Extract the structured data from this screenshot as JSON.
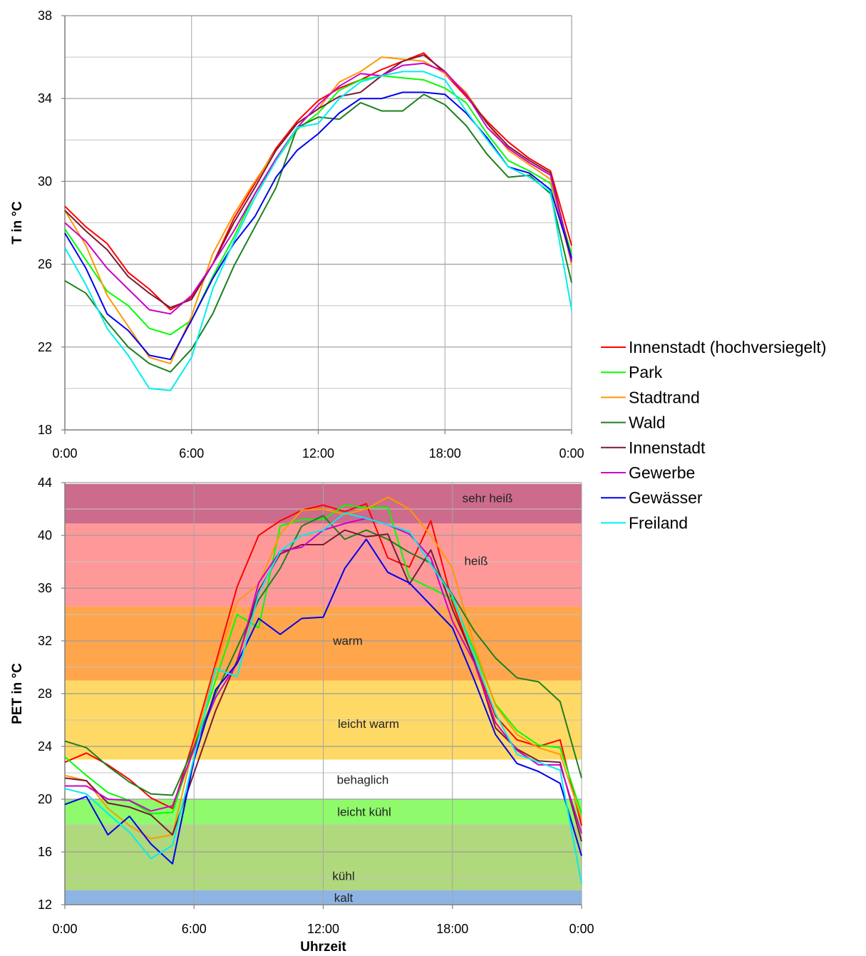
{
  "chart_data": [
    {
      "type": "line",
      "title": "",
      "xlabel": "",
      "ylabel": "T in °C",
      "xlim": [
        0,
        24
      ],
      "ylim": [
        18,
        38
      ],
      "x_ticks": [
        0,
        6,
        12,
        18,
        24
      ],
      "x_tick_labels": [
        "0:00",
        "6:00",
        "12:00",
        "18:00",
        "0:00"
      ],
      "y_ticks": [
        18,
        22,
        26,
        30,
        34,
        38
      ],
      "y_tick_labels": [
        "18",
        "22",
        "26",
        "30",
        "34",
        "38"
      ],
      "grid": true,
      "x": [
        0,
        1,
        2,
        3,
        4,
        5,
        6,
        7,
        8,
        9,
        10,
        11,
        12,
        13,
        14,
        15,
        16,
        17,
        18,
        19,
        20,
        21,
        22,
        23,
        24
      ],
      "series": [
        {
          "name": "Innenstadt (hochversiegelt)",
          "color": "#ff0000",
          "values": [
            28.8,
            27.8,
            27.0,
            25.6,
            24.8,
            23.8,
            24.4,
            26.0,
            28.2,
            29.9,
            31.6,
            32.9,
            33.9,
            34.5,
            34.9,
            35.4,
            35.8,
            36.2,
            35.2,
            34.1,
            32.9,
            31.9,
            31.1,
            30.5,
            26.9
          ]
        },
        {
          "name": "Park",
          "color": "#00ff00",
          "values": [
            27.7,
            26.2,
            24.7,
            24.0,
            22.9,
            22.6,
            23.3,
            25.4,
            27.3,
            29.4,
            31.0,
            32.5,
            33.3,
            34.4,
            34.9,
            35.1,
            35.0,
            34.9,
            34.5,
            33.8,
            32.3,
            31.0,
            30.5,
            29.9,
            26.5
          ]
        },
        {
          "name": "Stadtrand",
          "color": "#ff9900",
          "values": [
            28.6,
            26.9,
            24.5,
            23.0,
            21.5,
            21.2,
            23.5,
            26.5,
            28.4,
            30.0,
            31.5,
            32.8,
            33.5,
            34.8,
            35.3,
            36.0,
            35.9,
            35.8,
            35.2,
            34.3,
            32.8,
            31.5,
            30.8,
            30.1,
            26.0
          ]
        },
        {
          "name": "Wald",
          "color": "#1e7f1e",
          "values": [
            25.2,
            24.6,
            23.2,
            22.0,
            21.2,
            20.8,
            21.9,
            23.6,
            25.9,
            27.8,
            29.7,
            32.6,
            33.1,
            33.0,
            33.8,
            33.4,
            33.4,
            34.2,
            33.7,
            32.7,
            31.3,
            30.2,
            30.3,
            29.4,
            25.1
          ]
        },
        {
          "name": "Innenstadt",
          "color": "#7a1a33",
          "values": [
            28.6,
            27.6,
            26.7,
            25.4,
            24.6,
            23.9,
            24.3,
            26.0,
            28.0,
            29.7,
            31.5,
            32.8,
            33.5,
            34.1,
            34.3,
            35.1,
            35.8,
            36.1,
            35.3,
            34.2,
            32.8,
            31.7,
            31.0,
            30.4,
            26.2
          ]
        },
        {
          "name": "Gewerbe",
          "color": "#cc00cc",
          "values": [
            28.0,
            27.1,
            25.8,
            24.8,
            23.8,
            23.6,
            24.5,
            26.0,
            27.6,
            29.4,
            31.1,
            32.6,
            33.7,
            34.6,
            35.2,
            35.1,
            35.6,
            35.7,
            35.3,
            34.2,
            32.6,
            31.6,
            30.9,
            30.3,
            26.1
          ]
        },
        {
          "name": "Gewässer",
          "color": "#0000ee",
          "values": [
            27.5,
            25.8,
            23.6,
            22.8,
            21.6,
            21.4,
            23.3,
            25.3,
            27.0,
            28.3,
            30.2,
            31.5,
            32.3,
            33.3,
            34.0,
            34.0,
            34.3,
            34.3,
            34.2,
            33.3,
            32.1,
            30.7,
            30.4,
            29.6,
            26.3
          ]
        },
        {
          "name": "Freiland",
          "color": "#00eeee",
          "values": [
            26.8,
            25.0,
            22.9,
            21.6,
            20.0,
            19.9,
            21.5,
            24.8,
            27.1,
            29.2,
            31.0,
            32.6,
            32.8,
            34.0,
            34.8,
            35.1,
            35.3,
            35.3,
            34.9,
            33.4,
            32.0,
            30.7,
            30.2,
            29.5,
            23.8
          ]
        }
      ]
    },
    {
      "type": "line",
      "title": "",
      "xlabel": "Uhrzeit",
      "ylabel": "PET in °C",
      "xlim": [
        0,
        24
      ],
      "ylim": [
        12,
        44
      ],
      "x_ticks": [
        0,
        6,
        12,
        18,
        24
      ],
      "x_tick_labels": [
        "0:00",
        "6:00",
        "12:00",
        "18:00",
        "0:00"
      ],
      "y_ticks": [
        12,
        16,
        20,
        24,
        28,
        32,
        36,
        40,
        44
      ],
      "y_tick_labels": [
        "12",
        "16",
        "20",
        "24",
        "28",
        "32",
        "36",
        "40",
        "44"
      ],
      "grid": true,
      "bands": [
        {
          "label": "kalt",
          "from": 12,
          "to": 13.1,
          "color": "#8eb4e3"
        },
        {
          "label": "kühl",
          "from": 13.1,
          "to": 18.1,
          "color": "#b0d87c"
        },
        {
          "label": "leicht kühl",
          "from": 18.1,
          "to": 20.0,
          "color": "#8efa6c"
        },
        {
          "label": "behaglich",
          "from": 20.0,
          "to": 23.0,
          "color": "#ffffff"
        },
        {
          "label": "leicht warm",
          "from": 23.0,
          "to": 29.0,
          "color": "#ffd966"
        },
        {
          "label": "warm",
          "from": 29.0,
          "to": 34.6,
          "color": "#ffa64d"
        },
        {
          "label": "heiß",
          "from": 34.6,
          "to": 40.9,
          "color": "#ff9999"
        },
        {
          "label": "sehr heiß",
          "from": 40.9,
          "to": 43.9,
          "color": "#cc6b8c"
        }
      ],
      "x": [
        0,
        1,
        2,
        3,
        4,
        5,
        6,
        7,
        8,
        9,
        10,
        11,
        12,
        13,
        14,
        15,
        16,
        17,
        18,
        19,
        20,
        21,
        22,
        23,
        24
      ],
      "series": [
        {
          "name": "Innenstadt (hochversiegelt)",
          "color": "#ff0000",
          "values": [
            22.8,
            23.5,
            22.6,
            21.5,
            20.1,
            19.3,
            24.6,
            30.3,
            36.1,
            40.0,
            41.1,
            41.9,
            42.3,
            41.8,
            42.4,
            38.3,
            37.6,
            41.1,
            34.9,
            30.5,
            26.3,
            24.5,
            24.0,
            24.5,
            18.0
          ]
        },
        {
          "name": "Park",
          "color": "#00ff00",
          "values": [
            23.2,
            21.8,
            20.5,
            19.9,
            18.9,
            19.0,
            24.0,
            29.0,
            34.0,
            33.0,
            40.7,
            41.2,
            41.2,
            42.3,
            42.1,
            42.1,
            36.8,
            36.0,
            35.2,
            31.3,
            27.2,
            25.2,
            24.1,
            23.9,
            18.9
          ]
        },
        {
          "name": "Stadtrand",
          "color": "#ff9900",
          "values": [
            21.8,
            21.4,
            19.3,
            18.0,
            17.0,
            17.3,
            24.2,
            30.0,
            35.0,
            36.3,
            40.1,
            41.9,
            42.0,
            41.6,
            42.0,
            42.9,
            42.0,
            40.0,
            37.5,
            31.7,
            27.1,
            24.9,
            23.9,
            23.4,
            18.5
          ]
        },
        {
          "name": "Wald",
          "color": "#1e7f1e",
          "values": [
            24.4,
            23.9,
            22.5,
            21.3,
            20.4,
            20.3,
            24.0,
            28.0,
            31.5,
            35.1,
            37.5,
            40.7,
            41.5,
            39.7,
            40.4,
            39.7,
            38.7,
            37.9,
            35.5,
            32.8,
            30.7,
            29.2,
            28.9,
            27.4,
            21.6
          ]
        },
        {
          "name": "Innenstadt",
          "color": "#7a1a33",
          "values": [
            21.6,
            21.4,
            19.7,
            19.4,
            18.8,
            17.3,
            22.0,
            26.7,
            30.5,
            35.8,
            38.6,
            39.3,
            39.3,
            40.4,
            39.9,
            40.1,
            36.3,
            38.9,
            34.4,
            30.6,
            25.4,
            23.8,
            22.9,
            22.8,
            16.8
          ]
        },
        {
          "name": "Gewerbe",
          "color": "#cc00cc",
          "values": [
            21.0,
            21.0,
            20.0,
            19.9,
            19.1,
            19.5,
            23.8,
            27.7,
            30.3,
            36.4,
            38.8,
            39.1,
            40.4,
            40.9,
            41.3,
            40.8,
            40.1,
            38.3,
            33.5,
            30.4,
            25.8,
            23.7,
            22.6,
            22.6,
            17.4
          ]
        },
        {
          "name": "Gewässer",
          "color": "#0000ee",
          "values": [
            19.6,
            20.2,
            17.3,
            18.7,
            16.6,
            15.1,
            23.0,
            28.3,
            30.3,
            33.7,
            32.5,
            33.7,
            33.8,
            37.5,
            39.7,
            37.2,
            36.4,
            34.7,
            33.0,
            29.1,
            24.9,
            22.7,
            22.1,
            21.2,
            15.7
          ]
        },
        {
          "name": "Freiland",
          "color": "#00eeee",
          "values": [
            20.8,
            20.4,
            18.9,
            17.5,
            15.5,
            16.5,
            23.2,
            29.9,
            29.3,
            35.6,
            38.8,
            40.0,
            40.4,
            41.7,
            41.3,
            40.8,
            40.3,
            37.8,
            35.4,
            30.9,
            26.5,
            23.4,
            22.8,
            22.2,
            13.6
          ]
        }
      ]
    }
  ],
  "legend": {
    "placement": "right",
    "items": [
      {
        "name": "Innenstadt (hochversiegelt)",
        "color": "#ff0000"
      },
      {
        "name": "Park",
        "color": "#00ff00"
      },
      {
        "name": "Stadtrand",
        "color": "#ff9900"
      },
      {
        "name": "Wald",
        "color": "#1e7f1e"
      },
      {
        "name": "Innenstadt",
        "color": "#7a1a33"
      },
      {
        "name": "Gewerbe",
        "color": "#cc00cc"
      },
      {
        "name": "Gewässer",
        "color": "#0000ee"
      },
      {
        "name": "Freiland",
        "color": "#00eeee"
      }
    ]
  }
}
